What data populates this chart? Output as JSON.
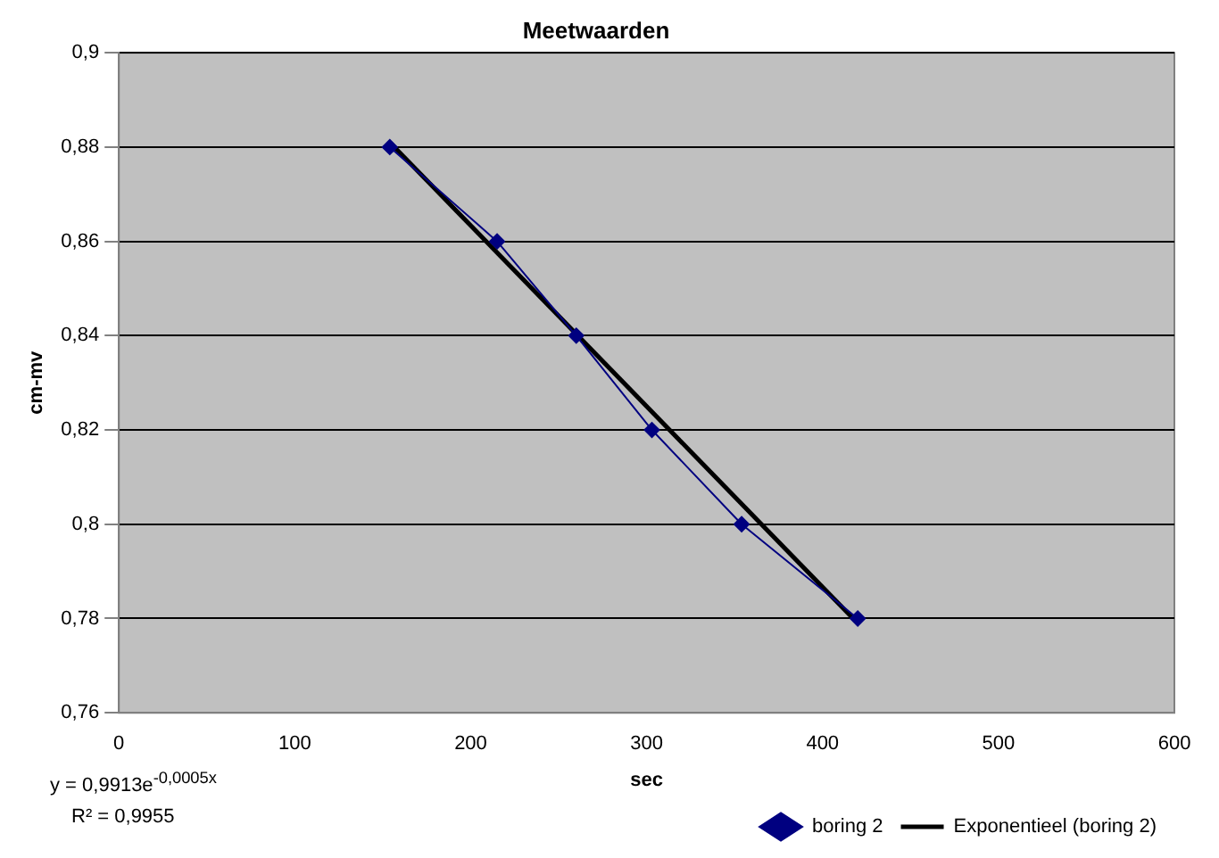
{
  "chart_data": {
    "type": "line",
    "title": "Meetwaarden",
    "xlabel": "sec",
    "ylabel": "cm-mv",
    "xlim": [
      0,
      600
    ],
    "xticks": [
      0,
      100,
      200,
      300,
      400,
      500,
      600
    ],
    "ylim": [
      0.76,
      0.9
    ],
    "yticks": [
      {
        "value": 0.76,
        "label": "0,76"
      },
      {
        "value": 0.78,
        "label": "0,78"
      },
      {
        "value": 0.8,
        "label": "0,8"
      },
      {
        "value": 0.82,
        "label": "0,82"
      },
      {
        "value": 0.84,
        "label": "0,84"
      },
      {
        "value": 0.86,
        "label": "0,86"
      },
      {
        "value": 0.88,
        "label": "0,88"
      },
      {
        "value": 0.9,
        "label": "0,9"
      }
    ],
    "grid": "y",
    "legend": "bottom right",
    "series": [
      {
        "name": "boring 2",
        "color": "#000080",
        "marker": "diamond",
        "x": [
          154,
          215,
          260,
          303,
          354,
          420
        ],
        "values": [
          0.88,
          0.86,
          0.84,
          0.82,
          0.8,
          0.78
        ]
      },
      {
        "name": "Exponentieel (boring 2)",
        "color": "#000000",
        "marker": "none",
        "x": [
          154,
          420
        ],
        "values": [
          0.881,
          0.779
        ]
      }
    ],
    "annotations": [
      "y = 0,9913e$^{-0,0005x}$",
      "R² = 0,9955"
    ]
  }
}
